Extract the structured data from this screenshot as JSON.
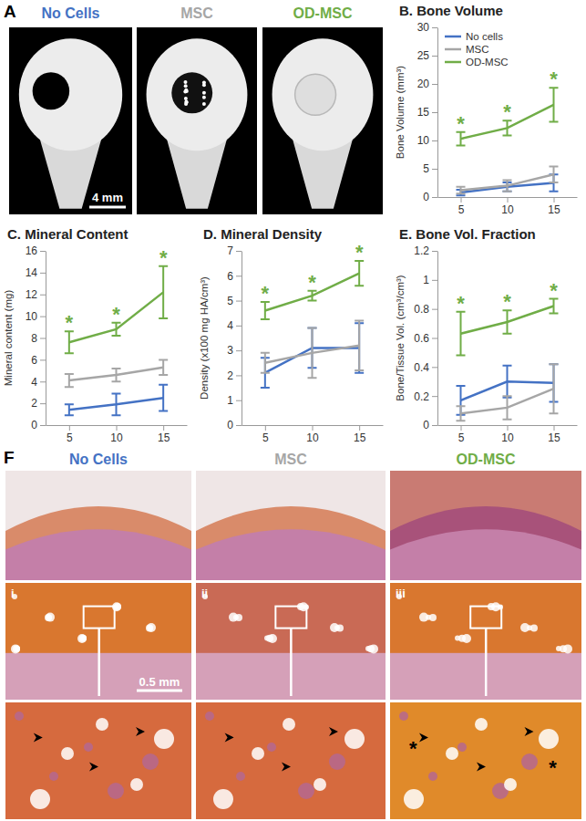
{
  "chart_data": [
    {
      "type": "line",
      "title": "B. Bone Volume",
      "y_label": "Bone Volume (mm³)",
      "x": [
        5,
        10,
        15
      ],
      "xlim": [
        2.5,
        17.5
      ],
      "xticks": [
        5,
        10,
        15
      ],
      "ylim": [
        0,
        30
      ],
      "yticks": [
        0,
        5,
        10,
        15,
        20,
        25,
        30
      ],
      "legend": "top-left",
      "series": [
        {
          "name": "No cells",
          "color": "#4472c4",
          "values": [
            0.8,
            1.8,
            2.5
          ],
          "errors": [
            0.5,
            0.8,
            1.5
          ]
        },
        {
          "name": "MSC",
          "color": "#a6a6a6",
          "values": [
            1.2,
            2.0,
            4.0
          ],
          "errors": [
            0.6,
            1.0,
            1.4
          ]
        },
        {
          "name": "OD-MSC",
          "color": "#70ad47",
          "values": [
            10.3,
            12.2,
            16.3
          ],
          "errors": [
            1.2,
            1.3,
            3.0
          ],
          "point_labels": [
            "*",
            "*",
            "*"
          ]
        }
      ]
    },
    {
      "type": "line",
      "title": "C. Mineral Content",
      "y_label": "Mineral content (mg)",
      "x": [
        5,
        10,
        15
      ],
      "xlim": [
        2.5,
        17.5
      ],
      "xticks": [
        5,
        10,
        15
      ],
      "ylim": [
        0,
        16
      ],
      "yticks": [
        0,
        2,
        4,
        6,
        8,
        10,
        12,
        14,
        16
      ],
      "series": [
        {
          "name": "No cells",
          "color": "#4472c4",
          "values": [
            1.4,
            1.9,
            2.5
          ],
          "errors": [
            0.5,
            1.0,
            1.2
          ]
        },
        {
          "name": "MSC",
          "color": "#a6a6a6",
          "values": [
            4.1,
            4.6,
            5.3
          ],
          "errors": [
            0.6,
            0.6,
            0.7
          ]
        },
        {
          "name": "OD-MSC",
          "color": "#70ad47",
          "values": [
            7.6,
            8.8,
            12.2
          ],
          "errors": [
            1.0,
            0.6,
            2.4
          ],
          "point_labels": [
            "*",
            "*",
            "*"
          ]
        }
      ]
    },
    {
      "type": "line",
      "title": "D. Mineral Density",
      "y_label": "Density (x100 mg HA/cm³)",
      "x": [
        5,
        10,
        15
      ],
      "xlim": [
        2.5,
        17.5
      ],
      "xticks": [
        5,
        10,
        15
      ],
      "ylim": [
        0,
        7
      ],
      "yticks": [
        0,
        1,
        2,
        3,
        4,
        5,
        6,
        7
      ],
      "series": [
        {
          "name": "No cells",
          "color": "#4472c4",
          "values": [
            2.1,
            3.1,
            3.1
          ],
          "errors": [
            0.6,
            0.8,
            1.0
          ]
        },
        {
          "name": "MSC",
          "color": "#a6a6a6",
          "values": [
            2.5,
            2.9,
            3.2
          ],
          "errors": [
            0.4,
            1.0,
            1.0
          ]
        },
        {
          "name": "OD-MSC",
          "color": "#70ad47",
          "values": [
            4.6,
            5.2,
            6.1
          ],
          "errors": [
            0.35,
            0.2,
            0.5
          ],
          "point_labels": [
            "*",
            "*",
            "*"
          ]
        }
      ]
    },
    {
      "type": "line",
      "title": "E. Bone Vol. Fraction",
      "y_label": "Bone/Tissue Vol. (cm³/cm³)",
      "x": [
        5,
        10,
        15
      ],
      "xlim": [
        2.5,
        17.5
      ],
      "xticks": [
        5,
        10,
        15
      ],
      "ylim": [
        0,
        1.2
      ],
      "yticks": [
        0,
        0.2,
        0.4,
        0.6,
        0.8,
        1,
        1.2
      ],
      "series": [
        {
          "name": "No cells",
          "color": "#4472c4",
          "values": [
            0.17,
            0.3,
            0.29
          ],
          "errors": [
            0.1,
            0.11,
            0.13
          ]
        },
        {
          "name": "MSC",
          "color": "#a6a6a6",
          "values": [
            0.08,
            0.12,
            0.25
          ],
          "errors": [
            0.05,
            0.08,
            0.17
          ]
        },
        {
          "name": "OD-MSC",
          "color": "#70ad47",
          "values": [
            0.63,
            0.71,
            0.82
          ],
          "errors": [
            0.15,
            0.08,
            0.05
          ],
          "point_labels": [
            "*",
            "*",
            "*"
          ]
        }
      ]
    }
  ],
  "panel_a": {
    "label": "A",
    "columns": [
      "No Cells",
      "MSC",
      "OD-MSC"
    ],
    "scale_bar": "4 mm"
  },
  "panel_f": {
    "label": "F",
    "columns": [
      "No Cells",
      "MSC",
      "OD-MSC"
    ],
    "scale_bar": "0.5 mm",
    "row_labels": [
      "i",
      "ii",
      "iii"
    ],
    "markers": [
      "*",
      "*"
    ]
  }
}
